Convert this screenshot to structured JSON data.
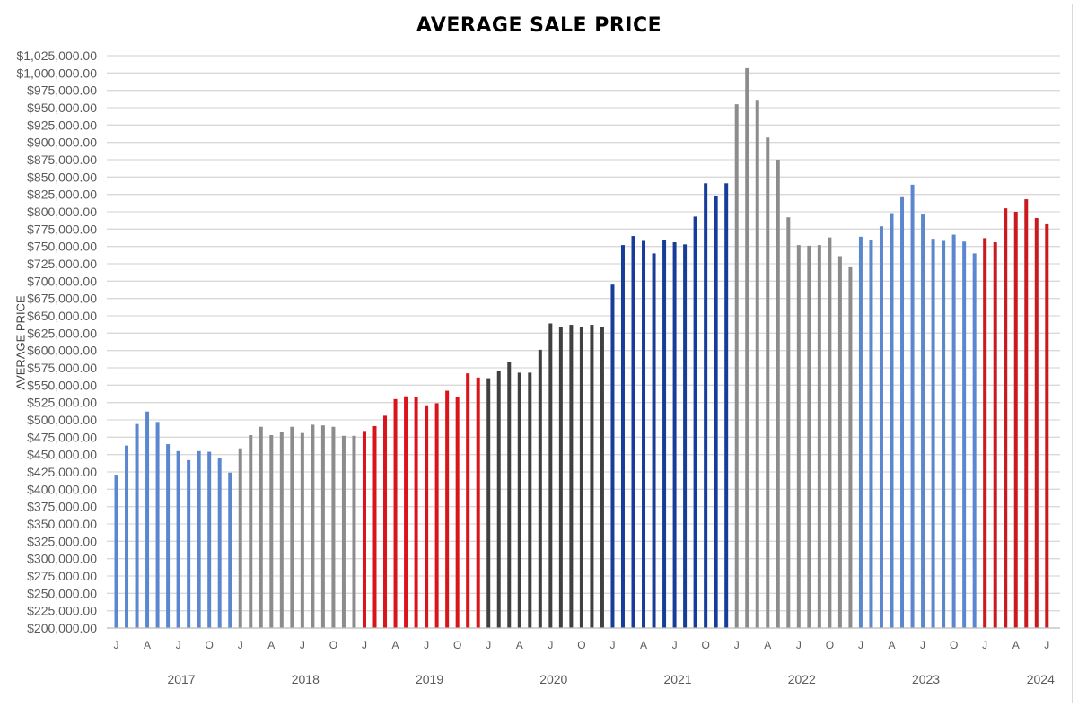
{
  "chart_data": {
    "type": "bar",
    "title": "AVERAGE SALE PRICE",
    "xlabel": "",
    "ylabel": "AVERAGE PRICE",
    "ylim": [
      200000,
      1025000
    ],
    "ytick_step": 25000,
    "ytick_format": "$#,##0.00",
    "grid": true,
    "legend": "none",
    "month_tick_labels": [
      "J",
      "A",
      "J",
      "O"
    ],
    "years": [
      {
        "year": "2017",
        "color": "#5b87cf",
        "values": [
          421000,
          463000,
          494000,
          512000,
          497000,
          465000,
          455000,
          442000,
          455000,
          454000,
          445000,
          424000
        ]
      },
      {
        "year": "2018",
        "color": "#8c8c8c",
        "values": [
          459000,
          478000,
          490000,
          478000,
          482000,
          490000,
          481000,
          493000,
          492000,
          490000,
          477000,
          477000
        ]
      },
      {
        "year": "2019",
        "color": "#d9141b",
        "values": [
          484000,
          491000,
          506000,
          530000,
          534000,
          533000,
          521000,
          524000,
          542000,
          533000,
          567000,
          561000
        ]
      },
      {
        "year": "2020",
        "color": "#404040",
        "values": [
          560000,
          571000,
          583000,
          568000,
          568000,
          601000,
          639000,
          634000,
          637000,
          634000,
          637000,
          634000
        ]
      },
      {
        "year": "2021",
        "color": "#173d9a",
        "values": [
          695000,
          752000,
          765000,
          758000,
          740000,
          759000,
          756000,
          753000,
          793000,
          841000,
          822000,
          841000
        ]
      },
      {
        "year": "2022",
        "color": "#8c8c8c",
        "values": [
          955000,
          1007000,
          960000,
          907000,
          875000,
          792000,
          752000,
          751000,
          752000,
          763000,
          736000,
          720000
        ]
      },
      {
        "year": "2023",
        "color": "#5b87cf",
        "values": [
          764000,
          759000,
          779000,
          798000,
          821000,
          839000,
          796000,
          761000,
          758000,
          767000,
          757000,
          740000
        ]
      },
      {
        "year": "2024",
        "color": "#c81a1f",
        "values": [
          762000,
          756000,
          805000,
          800000,
          818000,
          791000,
          782000
        ]
      }
    ]
  }
}
